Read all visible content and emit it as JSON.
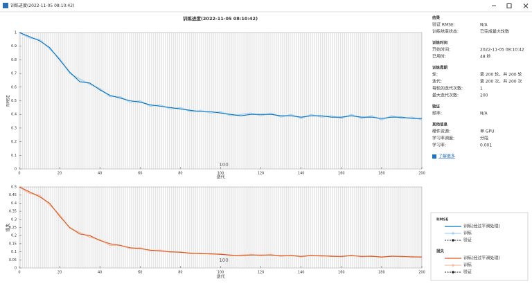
{
  "window_title": "训练进度(2022-11-05 08:10:42)",
  "figure_title": "训练进度(2022-11-05 08:10:42)",
  "chart_data": [
    {
      "type": "line",
      "ylabel": "RMSE",
      "xlabel": "迭代",
      "annotation": "100",
      "x": [
        0,
        5,
        10,
        15,
        20,
        25,
        30,
        35,
        40,
        45,
        50,
        55,
        60,
        65,
        70,
        75,
        80,
        85,
        90,
        95,
        100,
        105,
        110,
        115,
        120,
        125,
        130,
        135,
        140,
        145,
        150,
        155,
        160,
        165,
        170,
        175,
        180,
        185,
        190,
        195,
        200
      ],
      "series": [
        {
          "name": "训练(经过平滑处理)",
          "color": "#0072bd",
          "values": [
            1.0,
            0.97,
            0.94,
            0.89,
            0.8,
            0.71,
            0.64,
            0.63,
            0.58,
            0.54,
            0.52,
            0.5,
            0.49,
            0.47,
            0.46,
            0.45,
            0.44,
            0.43,
            0.42,
            0.42,
            0.41,
            0.4,
            0.39,
            0.4,
            0.4,
            0.4,
            0.39,
            0.39,
            0.38,
            0.39,
            0.39,
            0.38,
            0.38,
            0.39,
            0.38,
            0.38,
            0.37,
            0.38,
            0.38,
            0.37,
            0.37
          ]
        },
        {
          "name": "训练",
          "color": "#a9cfee",
          "values": [
            1.0,
            0.96,
            0.95,
            0.88,
            0.81,
            0.7,
            0.66,
            0.62,
            0.59,
            0.53,
            0.53,
            0.49,
            0.5,
            0.46,
            0.47,
            0.44,
            0.45,
            0.42,
            0.43,
            0.41,
            0.42,
            0.39,
            0.4,
            0.41,
            0.39,
            0.41,
            0.38,
            0.4,
            0.37,
            0.4,
            0.38,
            0.39,
            0.37,
            0.4,
            0.37,
            0.39,
            0.36,
            0.39,
            0.37,
            0.38,
            0.36
          ]
        }
      ],
      "xlim": [
        0,
        200
      ],
      "xticks": [
        0,
        20,
        40,
        60,
        80,
        100,
        120,
        140,
        160,
        180,
        200
      ],
      "ylim": [
        0,
        1
      ],
      "yticks": [
        0,
        0.1,
        0.2,
        0.3,
        0.4,
        0.5,
        0.6,
        0.7,
        0.8,
        0.9,
        1
      ]
    },
    {
      "type": "line",
      "ylabel": "损失",
      "xlabel": "迭代",
      "annotation": "100",
      "x": [
        0,
        5,
        10,
        15,
        20,
        25,
        30,
        35,
        40,
        45,
        50,
        55,
        60,
        65,
        70,
        75,
        80,
        85,
        90,
        95,
        100,
        105,
        110,
        115,
        120,
        125,
        130,
        135,
        140,
        145,
        150,
        155,
        160,
        165,
        170,
        175,
        180,
        185,
        190,
        195,
        200
      ],
      "series": [
        {
          "name": "训练(经过平滑处理)",
          "color": "#d95319",
          "values": [
            0.5,
            0.47,
            0.44,
            0.4,
            0.32,
            0.25,
            0.21,
            0.2,
            0.17,
            0.15,
            0.14,
            0.125,
            0.12,
            0.11,
            0.105,
            0.1,
            0.097,
            0.092,
            0.088,
            0.088,
            0.084,
            0.08,
            0.076,
            0.08,
            0.08,
            0.08,
            0.076,
            0.076,
            0.072,
            0.076,
            0.076,
            0.072,
            0.072,
            0.076,
            0.072,
            0.072,
            0.068,
            0.072,
            0.072,
            0.068,
            0.068
          ]
        },
        {
          "name": "训练",
          "color": "#f4bfa6",
          "values": [
            0.5,
            0.46,
            0.45,
            0.39,
            0.33,
            0.245,
            0.22,
            0.19,
            0.175,
            0.14,
            0.14,
            0.12,
            0.125,
            0.105,
            0.11,
            0.097,
            0.1,
            0.088,
            0.092,
            0.084,
            0.088,
            0.076,
            0.08,
            0.084,
            0.076,
            0.084,
            0.072,
            0.08,
            0.068,
            0.08,
            0.072,
            0.076,
            0.068,
            0.08,
            0.068,
            0.076,
            0.065,
            0.076,
            0.068,
            0.072,
            0.065
          ]
        }
      ],
      "xlim": [
        0,
        200
      ],
      "xticks": [
        0,
        20,
        40,
        60,
        80,
        100,
        120,
        140,
        160,
        180,
        200
      ],
      "ylim": [
        0,
        0.5
      ],
      "yticks": [
        0,
        0.05,
        0.1,
        0.15,
        0.2,
        0.25,
        0.3,
        0.35,
        0.4,
        0.45,
        0.5
      ]
    }
  ],
  "info_panel": {
    "sections": [
      {
        "title": "结果",
        "rows": [
          [
            "验证 RMSE:",
            "N/A"
          ],
          [
            "训练结束状态:",
            "已完成最大轮数"
          ]
        ]
      },
      {
        "title": "训练时间",
        "rows": [
          [
            "开始时间:",
            "2022-11-05 08:10:42"
          ],
          [
            "已用时:",
            "48 秒"
          ]
        ]
      },
      {
        "title": "训练周期",
        "rows": [
          [
            "轮:",
            "第 200 轮，共 200 轮"
          ],
          [
            "迭代:",
            "第 200 次，共 200 次"
          ],
          [
            "每轮的迭代次数:",
            "1"
          ],
          [
            "最大迭代次数:",
            "200"
          ]
        ]
      },
      {
        "title": "验证",
        "rows": [
          [
            "频率:",
            "N/A"
          ]
        ]
      },
      {
        "title": "其他信息",
        "rows": [
          [
            "硬件资源:",
            "单 GPU"
          ],
          [
            "学习率调度:",
            "分段"
          ],
          [
            "学习率:",
            "0.001"
          ]
        ]
      }
    ],
    "link": "了解更多"
  },
  "legend": {
    "groups": [
      {
        "title": "RMSE",
        "validation": "验证"
      },
      {
        "title": "损失",
        "validation": "验证"
      }
    ]
  }
}
